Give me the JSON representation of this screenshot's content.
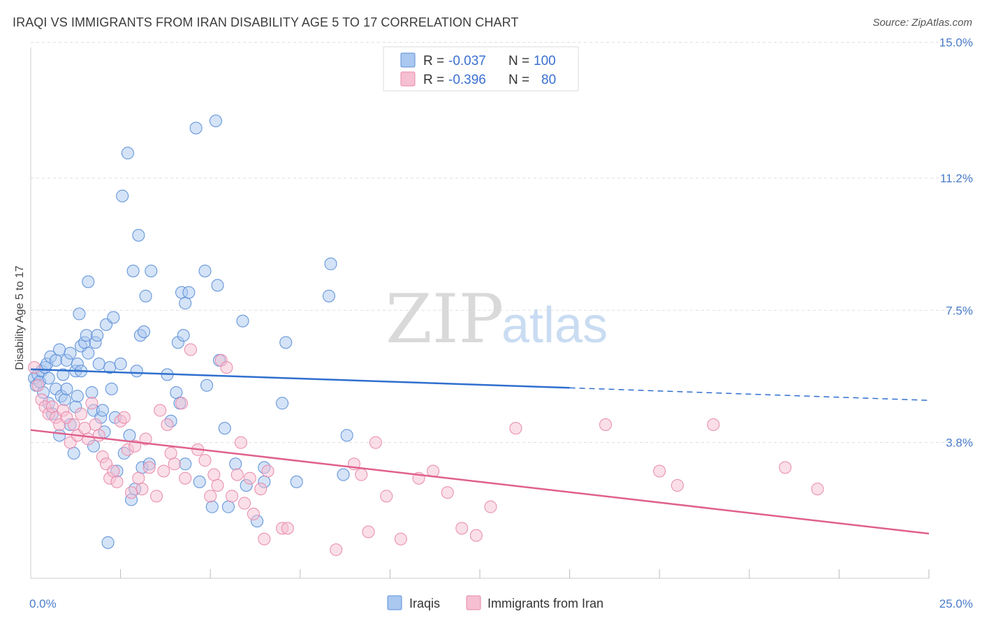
{
  "header": {
    "title": "IRAQI VS IMMIGRANTS FROM IRAN DISABILITY AGE 5 TO 17 CORRELATION CHART",
    "source": "Source: ZipAtlas.com"
  },
  "watermark": {
    "zip": "ZIP",
    "atlas": "atlas"
  },
  "legend_top": {
    "rows": [
      {
        "r_label": "R = ",
        "r_value": "-0.037",
        "n_label": "N = ",
        "n_value": "100"
      },
      {
        "r_label": "R = ",
        "r_value": "-0.396",
        "n_label": "N = ",
        "n_value": "80"
      }
    ]
  },
  "colors": {
    "iraqis_fill": "#aac8f0",
    "iraqis_stroke": "#5b8fd8",
    "iraqis_line": "#2f6fce",
    "iran_fill": "#f6bfd2",
    "iran_stroke": "#e889ab",
    "iran_line": "#e0608d",
    "tick_text": "#4a7cc9",
    "grid": "#dddddd"
  },
  "chart_data": {
    "type": "scatter",
    "title": "IRAQI VS IMMIGRANTS FROM IRAN DISABILITY AGE 5 TO 17 CORRELATION CHART",
    "xlabel": "",
    "ylabel": "Disability Age 5 to 17",
    "xlim": [
      0,
      25
    ],
    "ylim": [
      0,
      15.5
    ],
    "x_tick_labels": [
      {
        "value": 0,
        "label": "0.0%"
      },
      {
        "value": 25,
        "label": "25.0%"
      }
    ],
    "x_minor_ticks": [
      2.5,
      5,
      7.5,
      10,
      12.5,
      15,
      17.5,
      20,
      22.5,
      25
    ],
    "y_ticks": [
      {
        "value": 3.8,
        "label": "3.8%"
      },
      {
        "value": 7.5,
        "label": "7.5%"
      },
      {
        "value": 11.2,
        "label": "11.2%"
      },
      {
        "value": 15.0,
        "label": "15.0%"
      }
    ],
    "grid": "horizontal dashed",
    "legend_position": "top-center",
    "series": [
      {
        "name": "Iraqis",
        "r": -0.037,
        "n": 100,
        "trend": {
          "x_start": 0,
          "y_start": 5.85,
          "x_solid_end": 15,
          "y_solid_end": 5.33,
          "x_end": 25,
          "y_end": 4.98
        },
        "points": [
          [
            0.1,
            5.6
          ],
          [
            0.15,
            5.4
          ],
          [
            0.2,
            5.7
          ],
          [
            0.25,
            5.5
          ],
          [
            0.3,
            5.8
          ],
          [
            0.35,
            5.2
          ],
          [
            0.4,
            5.9
          ],
          [
            0.45,
            6.0
          ],
          [
            0.5,
            5.6
          ],
          [
            0.5,
            4.9
          ],
          [
            0.55,
            6.2
          ],
          [
            0.6,
            4.6
          ],
          [
            0.7,
            5.3
          ],
          [
            0.7,
            6.1
          ],
          [
            0.8,
            6.4
          ],
          [
            0.8,
            4.0
          ],
          [
            0.85,
            5.1
          ],
          [
            0.9,
            5.7
          ],
          [
            0.95,
            5.0
          ],
          [
            1.0,
            6.1
          ],
          [
            1.0,
            5.3
          ],
          [
            1.1,
            6.3
          ],
          [
            1.1,
            4.3
          ],
          [
            1.2,
            3.5
          ],
          [
            1.25,
            5.8
          ],
          [
            1.25,
            4.8
          ],
          [
            1.3,
            6.0
          ],
          [
            1.3,
            5.1
          ],
          [
            1.35,
            7.4
          ],
          [
            1.4,
            5.8
          ],
          [
            1.4,
            6.5
          ],
          [
            1.5,
            6.6
          ],
          [
            1.55,
            6.8
          ],
          [
            1.6,
            6.3
          ],
          [
            1.6,
            8.3
          ],
          [
            1.7,
            5.2
          ],
          [
            1.75,
            4.7
          ],
          [
            1.75,
            3.7
          ],
          [
            1.8,
            6.6
          ],
          [
            1.85,
            6.8
          ],
          [
            1.9,
            6.0
          ],
          [
            1.95,
            4.5
          ],
          [
            2.0,
            4.7
          ],
          [
            2.05,
            4.1
          ],
          [
            2.1,
            7.1
          ],
          [
            2.15,
            1.0
          ],
          [
            2.2,
            5.9
          ],
          [
            2.25,
            5.3
          ],
          [
            2.3,
            7.3
          ],
          [
            2.35,
            4.5
          ],
          [
            2.4,
            3.0
          ],
          [
            2.5,
            6.0
          ],
          [
            2.55,
            10.7
          ],
          [
            2.6,
            3.5
          ],
          [
            2.7,
            11.9
          ],
          [
            2.75,
            4.0
          ],
          [
            2.8,
            2.2
          ],
          [
            2.85,
            8.6
          ],
          [
            2.9,
            2.5
          ],
          [
            2.95,
            5.8
          ],
          [
            3.0,
            9.6
          ],
          [
            3.05,
            6.8
          ],
          [
            3.1,
            3.1
          ],
          [
            3.15,
            6.9
          ],
          [
            3.2,
            7.9
          ],
          [
            3.3,
            3.2
          ],
          [
            3.35,
            8.6
          ],
          [
            3.8,
            5.7
          ],
          [
            3.9,
            4.4
          ],
          [
            4.05,
            5.2
          ],
          [
            4.1,
            6.6
          ],
          [
            4.15,
            4.9
          ],
          [
            4.2,
            8.0
          ],
          [
            4.25,
            6.8
          ],
          [
            4.3,
            3.2
          ],
          [
            4.3,
            7.7
          ],
          [
            4.4,
            8.0
          ],
          [
            4.6,
            12.6
          ],
          [
            4.7,
            2.7
          ],
          [
            4.85,
            8.6
          ],
          [
            4.9,
            5.4
          ],
          [
            5.05,
            2.0
          ],
          [
            5.15,
            12.8
          ],
          [
            5.2,
            8.2
          ],
          [
            5.25,
            6.1
          ],
          [
            5.4,
            4.2
          ],
          [
            5.5,
            2.0
          ],
          [
            5.7,
            3.2
          ],
          [
            5.9,
            7.2
          ],
          [
            6.0,
            2.6
          ],
          [
            6.3,
            1.6
          ],
          [
            6.5,
            3.1
          ],
          [
            6.5,
            2.7
          ],
          [
            7.0,
            4.9
          ],
          [
            7.1,
            6.6
          ],
          [
            7.4,
            2.7
          ],
          [
            8.3,
            7.9
          ],
          [
            8.35,
            8.8
          ],
          [
            8.7,
            2.9
          ],
          [
            8.8,
            4.0
          ]
        ]
      },
      {
        "name": "Immigrants from Iran",
        "r": -0.396,
        "n": 80,
        "trend": {
          "x_start": 0,
          "y_start": 4.15,
          "x_end": 25,
          "y_end": 1.25
        },
        "points": [
          [
            0.1,
            5.9
          ],
          [
            0.2,
            5.4
          ],
          [
            0.3,
            5.0
          ],
          [
            0.4,
            4.8
          ],
          [
            0.5,
            4.6
          ],
          [
            0.6,
            4.8
          ],
          [
            0.7,
            4.5
          ],
          [
            0.8,
            4.3
          ],
          [
            0.9,
            4.7
          ],
          [
            1.0,
            4.5
          ],
          [
            1.1,
            3.8
          ],
          [
            1.2,
            4.3
          ],
          [
            1.3,
            4.0
          ],
          [
            1.4,
            4.6
          ],
          [
            1.5,
            4.2
          ],
          [
            1.6,
            3.9
          ],
          [
            1.7,
            4.9
          ],
          [
            1.8,
            4.3
          ],
          [
            1.9,
            4.0
          ],
          [
            2.0,
            3.4
          ],
          [
            2.1,
            3.2
          ],
          [
            2.2,
            2.8
          ],
          [
            2.3,
            3.0
          ],
          [
            2.4,
            2.7
          ],
          [
            2.5,
            4.4
          ],
          [
            2.6,
            4.5
          ],
          [
            2.7,
            3.6
          ],
          [
            2.8,
            2.4
          ],
          [
            2.9,
            3.7
          ],
          [
            3.0,
            2.8
          ],
          [
            3.1,
            2.5
          ],
          [
            3.2,
            3.9
          ],
          [
            3.3,
            3.1
          ],
          [
            3.5,
            2.3
          ],
          [
            3.6,
            4.7
          ],
          [
            3.7,
            3.0
          ],
          [
            3.8,
            4.3
          ],
          [
            3.9,
            3.5
          ],
          [
            4.0,
            3.2
          ],
          [
            4.2,
            4.9
          ],
          [
            4.3,
            2.8
          ],
          [
            4.45,
            6.4
          ],
          [
            4.65,
            3.6
          ],
          [
            4.85,
            3.3
          ],
          [
            5.0,
            2.3
          ],
          [
            5.1,
            2.9
          ],
          [
            5.2,
            2.6
          ],
          [
            5.3,
            6.1
          ],
          [
            5.45,
            5.9
          ],
          [
            5.6,
            2.3
          ],
          [
            5.75,
            2.9
          ],
          [
            5.85,
            3.8
          ],
          [
            5.95,
            2.1
          ],
          [
            6.1,
            2.8
          ],
          [
            6.2,
            1.8
          ],
          [
            6.4,
            2.5
          ],
          [
            6.5,
            1.1
          ],
          [
            6.6,
            3.0
          ],
          [
            7.0,
            1.4
          ],
          [
            7.15,
            1.4
          ],
          [
            8.5,
            0.8
          ],
          [
            9.0,
            3.2
          ],
          [
            9.2,
            2.9
          ],
          [
            9.4,
            1.3
          ],
          [
            9.6,
            3.8
          ],
          [
            9.9,
            2.3
          ],
          [
            10.3,
            1.1
          ],
          [
            10.8,
            2.8
          ],
          [
            11.2,
            3.0
          ],
          [
            11.6,
            2.4
          ],
          [
            12.0,
            1.4
          ],
          [
            12.4,
            1.2
          ],
          [
            12.8,
            2.0
          ],
          [
            13.5,
            4.2
          ],
          [
            16.0,
            4.3
          ],
          [
            17.5,
            3.0
          ],
          [
            18.0,
            2.6
          ],
          [
            19.0,
            4.3
          ],
          [
            21.0,
            3.1
          ],
          [
            21.9,
            2.5
          ]
        ]
      }
    ]
  },
  "bottom_legend": {
    "items": [
      {
        "label": "Iraqis"
      },
      {
        "label": "Immigrants from Iran"
      }
    ]
  }
}
